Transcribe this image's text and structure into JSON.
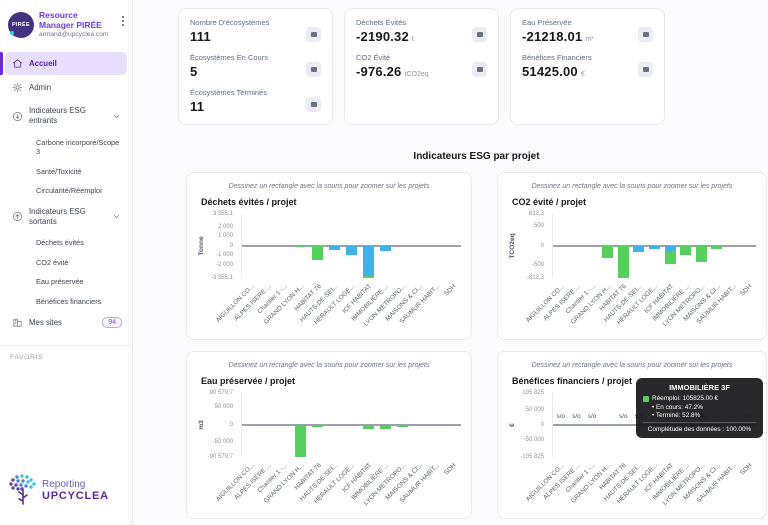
{
  "colors": {
    "green": "#57cf5f",
    "blue": "#41b2e8",
    "accent_purple": "#6d28d9",
    "logo_purple": "#5b2a96"
  },
  "sidebar": {
    "logo_text": "PIRÉE",
    "title": "Resource Manager PIRÉE",
    "email": "armand@upcyclea.com",
    "items": {
      "accueil": "Accueil",
      "admin": "Admin",
      "esg_entrants": "Indicateurs ESG entrants",
      "carbone": "Carbone incorporé/Scope 3",
      "sante": "Santé/Toxicité",
      "circularite": "Circularité/Réemploi",
      "esg_sortants": "Indicateurs ESG sortants",
      "dechets": "Déchets évités",
      "co2": "CO2 évité",
      "eau": "Eau préservée",
      "benefices": "Bénéfices financiers",
      "mes_sites": "Mes sites",
      "mes_sites_count": "94",
      "favoris": "FAVORIS"
    },
    "footer": {
      "line1": "Reporting",
      "line2": "UPCYCLEA"
    }
  },
  "kpis": {
    "card1": [
      {
        "label": "Nombre D'écosystèmes",
        "value": "111",
        "unit": ""
      },
      {
        "label": "Écosystèmes En Cours",
        "value": "5",
        "unit": ""
      },
      {
        "label": "Écosystèmes Terminés",
        "value": "11",
        "unit": ""
      }
    ],
    "card2": [
      {
        "label": "Déchets Évités",
        "value": "-2190.32",
        "unit": "t"
      },
      {
        "label": "CO2 Évité",
        "value": "-976.26",
        "unit": "tCO2eq"
      }
    ],
    "card3": [
      {
        "label": "Eau Préservée",
        "value": "-21218.01",
        "unit": "m³"
      },
      {
        "label": "Bénéfices Financiers",
        "value": "51425.00",
        "unit": "€"
      }
    ]
  },
  "section_title": "Indicateurs ESG par projet",
  "chart_data": [
    {
      "type": "bar",
      "title": "Déchets évités / projet",
      "hint": "Dessinez un rectangle avec la souris pour zoomer sur les projets",
      "ylabel": "Tonne",
      "ylim": [
        -3355.1,
        3355.1
      ],
      "yticks": [
        3355.1,
        2000,
        1000,
        0,
        -1000,
        -2000,
        -3355.1
      ],
      "ytick_labels": [
        "3 355,1",
        "2 000",
        "1 000",
        "0",
        "-1 000",
        "-2 000",
        "-3 355,1"
      ],
      "categories": [
        "AIGUILLON CO...",
        "ALPES ISERE ...",
        "Chantier 1 -...",
        "GRAND LYON H...",
        "HABITAT 76",
        "HAUTS-DE-SEI...",
        "HERAULT LOGE...",
        "ICF HABITAT",
        "IMMOBILIÈRE ...",
        "LYON METROPO...",
        "MAISONS & CI...",
        "SAUMUR HABIT...",
        "SDH"
      ],
      "series": [
        {
          "name": "En cours",
          "color": "blue",
          "values": [
            0,
            0,
            0,
            0,
            0,
            -400,
            -950,
            -3150,
            -540,
            0,
            0,
            0,
            0
          ]
        },
        {
          "name": "Réemploi",
          "color": "green",
          "values": [
            0,
            0,
            0,
            -60,
            -1500,
            0,
            0,
            -205,
            0,
            0,
            0,
            0,
            0
          ]
        }
      ]
    },
    {
      "type": "bar",
      "title": "CO2 évité / projet",
      "hint": "Dessinez un rectangle avec la souris pour zoomer sur les projets",
      "ylabel": "TCO2eq",
      "ylim": [
        -812.3,
        812.3
      ],
      "yticks": [
        812.3,
        500,
        0,
        -500,
        -812.3
      ],
      "ytick_labels": [
        "812,3",
        "500",
        "0",
        "-500",
        "-812,3"
      ],
      "categories": [
        "AIGUILLON CO...",
        "ALPES ISERE ...",
        "Chantier 1 -...",
        "GRAND LYON H...",
        "HABITAT 76",
        "HAUTS-DE-SEI...",
        "HERAULT LOGE...",
        "ICF HABITAT",
        "IMMOBILIÈRE ...",
        "LYON METROPO...",
        "MAISONS & CI...",
        "SAUMUR HABIT...",
        "SDH"
      ],
      "series": [
        {
          "name": "En cours",
          "color": "blue",
          "values": [
            0,
            0,
            0,
            0,
            0,
            -150,
            -70,
            -130,
            0,
            0,
            0,
            0,
            0
          ]
        },
        {
          "name": "Réemploi",
          "color": "green",
          "values": [
            0,
            0,
            0,
            -300,
            -812.3,
            0,
            0,
            -325,
            -240,
            -400,
            -70,
            0,
            0
          ]
        }
      ]
    },
    {
      "type": "bar",
      "title": "Eau préservée / projet",
      "hint": "Dessinez un rectangle avec la souris pour zoomer sur les projets",
      "ylabel": "m3",
      "ylim": [
        -90579.7,
        90579.7
      ],
      "yticks": [
        90579.7,
        50000,
        0,
        -50000,
        -90579.7
      ],
      "ytick_labels": [
        "90 579,7",
        "50 000",
        "0",
        "-50 000",
        "-90 579,7"
      ],
      "categories": [
        "AIGUILLON CO...",
        "ALPES ISERE ...",
        "Chantier 1 -...",
        "GRAND LYON H...",
        "HABITAT 76",
        "HAUTS-DE-SEI...",
        "HERAULT LOGE...",
        "ICF HABITAT",
        "IMMOBILIÈRE ...",
        "LYON METROPO...",
        "MAISONS & CI...",
        "SAUMUR HABIT...",
        "SDH"
      ],
      "series": [
        {
          "name": "Réemploi",
          "color": "green",
          "values": [
            0,
            0,
            0,
            -90579.7,
            -6000,
            0,
            0,
            -10000,
            -12000,
            -5500,
            0,
            0,
            0
          ]
        }
      ]
    },
    {
      "type": "bar",
      "title": "Bénéfices financiers / projet",
      "hint": "Dessinez un rectangle avec la souris pour zoomer sur les projets",
      "ylabel": "€",
      "ylim": [
        -105825,
        105825
      ],
      "yticks": [
        105825,
        50000,
        0,
        -50000,
        -105825
      ],
      "ytick_labels": [
        "105 825",
        "50 000",
        "0",
        "-50 000",
        "-105 825"
      ],
      "categories": [
        "AIGUILLON CO...",
        "ALPES ISERE ...",
        "Chantier 1 -...",
        "GRAND LYON H...",
        "HABITAT 76",
        "HAUTS-DE-SEI...",
        "HERAULT LOGE...",
        "ICF HABITAT",
        "IMMOBILIÈRE ...",
        "LYON METROPO...",
        "MAISONS & CI...",
        "SAUMUR HABIT...",
        "SDH"
      ],
      "series": [],
      "na_label": "s/o",
      "na_flags": [
        1,
        1,
        1,
        0,
        1,
        1,
        1,
        1,
        1,
        1,
        1,
        1,
        1
      ],
      "tooltip": {
        "title": "IMMOBILIÈRE 3F",
        "reemploi": "Réemploi: 105825.00 €",
        "en_cours": "• En cours: 47.2%",
        "termine": "• Terminé: 52.8%",
        "completude": "Complétude des données : 100.00%"
      }
    }
  ]
}
